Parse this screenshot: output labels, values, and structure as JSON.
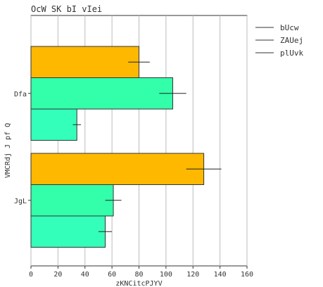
{
  "chart_data": {
    "type": "bar",
    "orientation": "horizontal",
    "title": "OcW SK bI vIei",
    "xlabel": "zKNCitcPJYV",
    "ylabel": "VMCRdj J pf Q",
    "xlim": [
      0,
      160
    ],
    "xticks": [
      0,
      20,
      40,
      60,
      80,
      100,
      120,
      140,
      160
    ],
    "grid": "vertical",
    "legend_position": "top-right, outside plot",
    "categories": [
      "Dfa",
      "JgL"
    ],
    "series": [
      {
        "name": "bUcw",
        "color": "#ffb800",
        "values": [
          80,
          128
        ],
        "errors": [
          8,
          13
        ]
      },
      {
        "name": "ZAUej",
        "color": "#33ffaa",
        "values": [
          105,
          61
        ],
        "errors": [
          10,
          6
        ]
      },
      {
        "name": "plUvk",
        "color": "#33ffbb",
        "values": [
          34,
          55
        ],
        "errors": [
          3,
          5
        ]
      }
    ]
  }
}
